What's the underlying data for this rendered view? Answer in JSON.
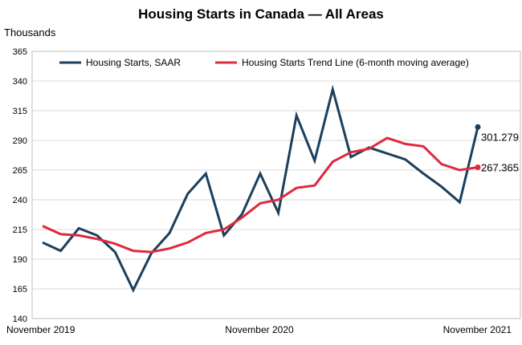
{
  "chart_data": {
    "type": "line",
    "title": "Housing Starts in Canada — All Areas",
    "ylabel": "Thousands",
    "xlabel": "",
    "ylim": [
      140,
      365
    ],
    "yticks": [
      140,
      165,
      190,
      215,
      240,
      265,
      290,
      315,
      340,
      365
    ],
    "x_tick_labels": [
      "November 2019",
      "November 2020",
      "November 2021"
    ],
    "legend_position": "top",
    "grid": "horizontal",
    "x": [
      "2019-11",
      "2019-12",
      "2020-01",
      "2020-02",
      "2020-03",
      "2020-04",
      "2020-05",
      "2020-06",
      "2020-07",
      "2020-08",
      "2020-09",
      "2020-10",
      "2020-11",
      "2020-12",
      "2021-01",
      "2021-02",
      "2021-03",
      "2021-04",
      "2021-05",
      "2021-06",
      "2021-07",
      "2021-08",
      "2021-09",
      "2021-10",
      "2021-11"
    ],
    "series": [
      {
        "name": "Housing Starts, SAAR",
        "color": "#1b3f5c",
        "values": [
          204,
          197,
          216,
          210,
          196,
          164,
          195,
          212,
          245,
          262,
          210,
          228,
          262,
          229,
          311,
          273,
          333,
          276,
          284,
          279,
          274,
          262,
          251,
          238,
          301.279
        ],
        "end_label": "301.279"
      },
      {
        "name": "Housing Starts Trend Line (6-month moving average)",
        "color": "#e0283e",
        "values": [
          218,
          211,
          210,
          207,
          203,
          197,
          196,
          199,
          204,
          212,
          215,
          225,
          237,
          240,
          250,
          252,
          272,
          280,
          283,
          292,
          287,
          285,
          270,
          265,
          267.365
        ],
        "end_label": "267.365"
      }
    ]
  }
}
